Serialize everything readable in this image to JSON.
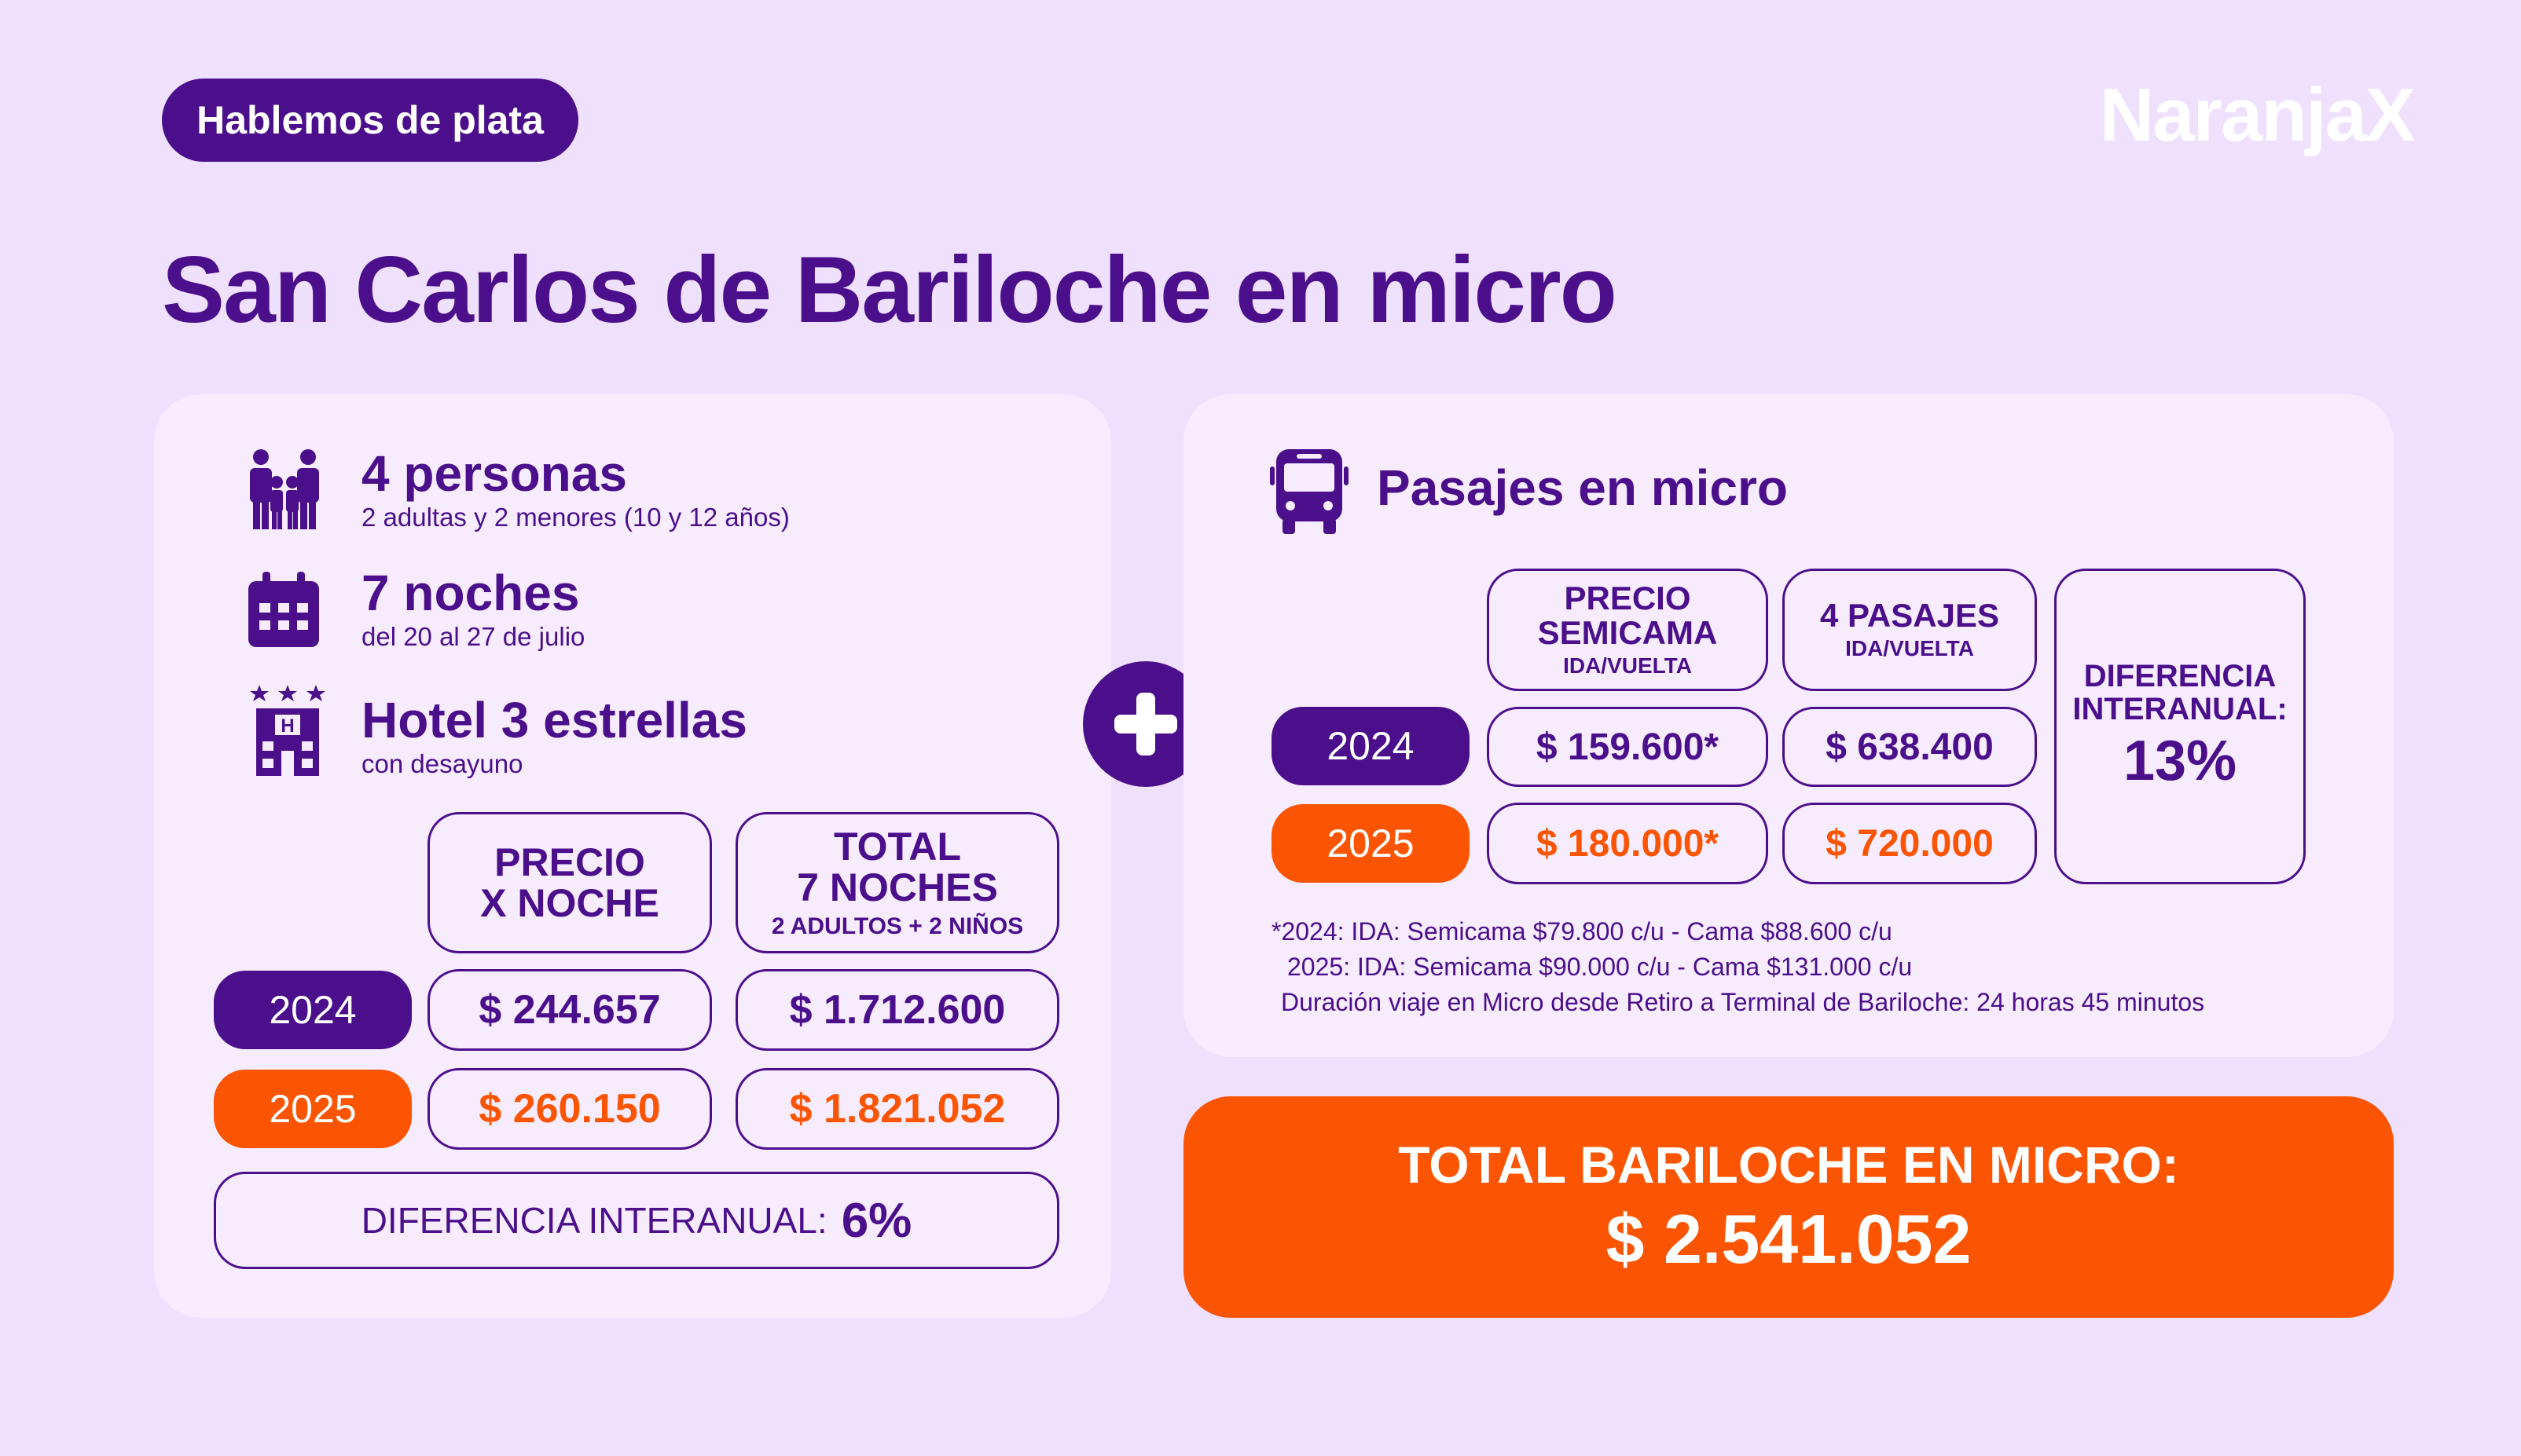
{
  "tag": "Hablemos de plata",
  "brand": "NaranjaX",
  "title": "San Carlos de Bariloche en micro",
  "info": {
    "people": {
      "title": "4 personas",
      "sub": "2 adultas y 2 menores (10 y 12 años)"
    },
    "nights": {
      "title": "7 noches",
      "sub": "del 20 al 27 de julio"
    },
    "hotel": {
      "title": "Hotel 3 estrellas",
      "sub": "con desayuno"
    }
  },
  "hotel_table": {
    "col1": {
      "line1": "PRECIO",
      "line2": "X NOCHE"
    },
    "col2": {
      "line1": "TOTAL",
      "line2": "7 NOCHES",
      "sub": "2 ADULTOS + 2 NIÑOS"
    },
    "rows": [
      {
        "year": "2024",
        "price": "$ 244.657",
        "total": "$ 1.712.600"
      },
      {
        "year": "2025",
        "price": "$ 260.150",
        "total": "$ 1.821.052"
      }
    ],
    "diff_label": "DIFERENCIA INTERANUAL:",
    "diff_value": "6%"
  },
  "bus": {
    "title": "Pasajes en micro",
    "col1": {
      "line1": "PRECIO",
      "line2": "SEMICAMA",
      "sub": "IDA/VUELTA"
    },
    "col2": {
      "line1": "4 PASAJES",
      "sub": "IDA/VUELTA"
    },
    "rows": [
      {
        "year": "2024",
        "price": "$ 159.600*",
        "total": "$ 638.400"
      },
      {
        "year": "2025",
        "price": "$ 180.000*",
        "total": "$ 720.000"
      }
    ],
    "diff": {
      "line1": "DIFERENCIA",
      "line2": "INTERANUAL:",
      "value": "13%"
    },
    "notes": [
      "*2024: IDA: Semicama $79.800 c/u - Cama $88.600 c/u",
      "2025: IDA: Semicama $90.000 c/u - Cama $131.000 c/u",
      "Duración viaje en Micro desde Retiro a Terminal de Bariloche: 24 horas 45 minutos"
    ]
  },
  "total": {
    "label": "TOTAL BARILOCHE EN MICRO:",
    "value": "$ 2.541.052"
  },
  "colors": {
    "purple": "#4b0f8c",
    "orange": "#fb5402",
    "background": "#efe0fd",
    "card": "#f6ecfe"
  },
  "icons": [
    "family-icon",
    "calendar-icon",
    "hotel-icon",
    "plus-icon",
    "bus-icon"
  ]
}
